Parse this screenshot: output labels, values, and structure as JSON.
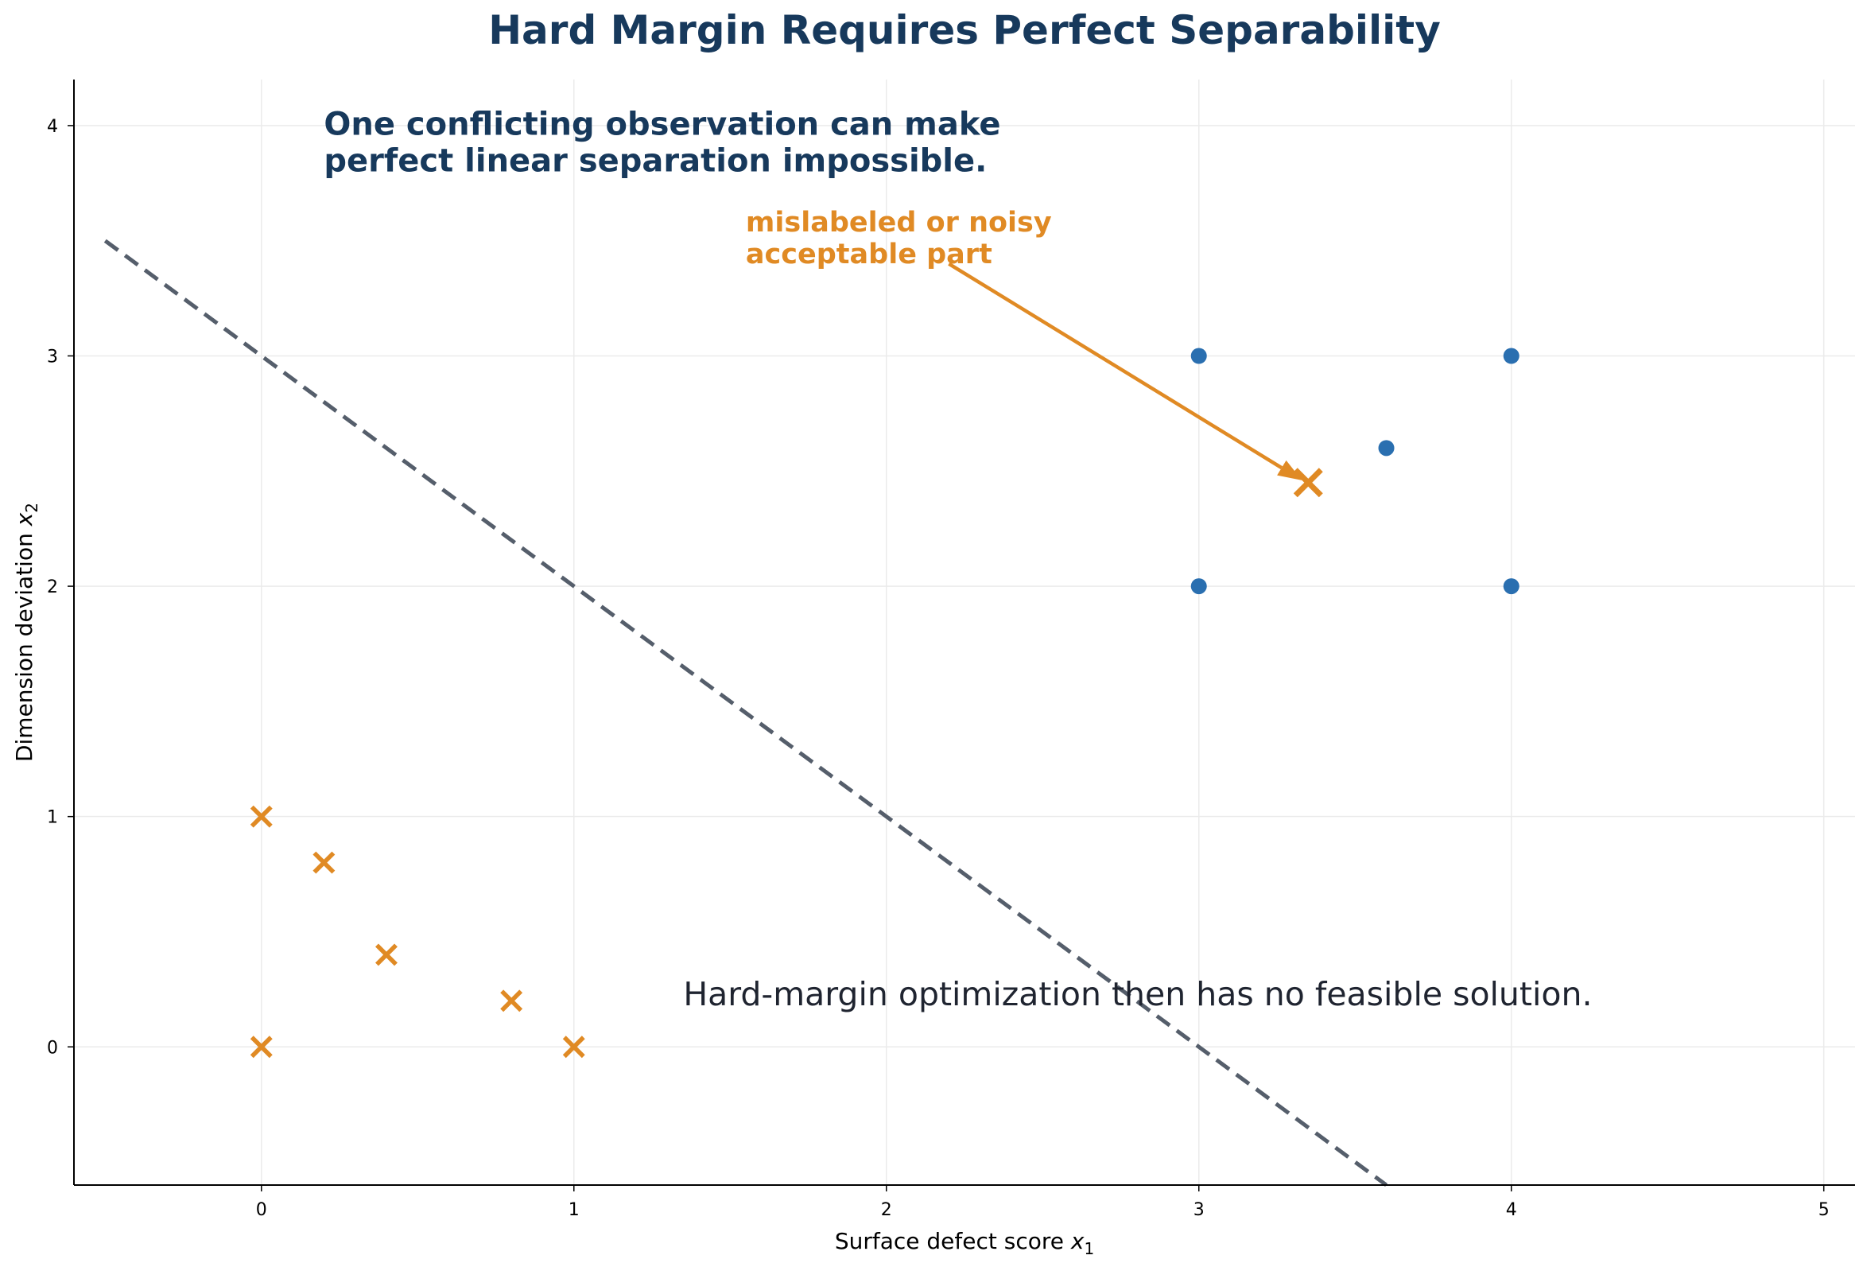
{
  "chart_data": {
    "type": "scatter",
    "title": "Hard Margin Requires Perfect Separability",
    "xlabel": "Surface defect score",
    "xlabel_symbol": "x",
    "xlabel_sub": "1",
    "ylabel": "Dimension deviation",
    "ylabel_symbol": "x",
    "ylabel_sub": "2",
    "xlim": [
      -0.6,
      5.1
    ],
    "ylim": [
      -0.6,
      4.2
    ],
    "xticks": [
      0,
      1,
      2,
      3,
      4,
      5
    ],
    "yticks": [
      0,
      1,
      2,
      3,
      4
    ],
    "grid": true,
    "series": [
      {
        "marker": "x",
        "color": "#e08a24",
        "points": [
          [
            0,
            1
          ],
          [
            0.2,
            0.8
          ],
          [
            0.4,
            0.4
          ],
          [
            0.8,
            0.2
          ],
          [
            0,
            0
          ],
          [
            1,
            0
          ]
        ]
      },
      {
        "marker": "circle",
        "color": "#2a6fb0",
        "points": [
          [
            3,
            3
          ],
          [
            4,
            3
          ],
          [
            3.6,
            2.6
          ],
          [
            3,
            2
          ],
          [
            4,
            2
          ]
        ]
      },
      {
        "marker": "x-large",
        "color": "#e08a24",
        "points": [
          [
            3.35,
            2.45
          ]
        ]
      }
    ],
    "boundary_line": {
      "style": "dashed",
      "color": "#555e6b",
      "from": [
        -0.5,
        3.5
      ],
      "to": [
        3.6,
        -0.6
      ]
    },
    "annotations": {
      "headline_lines": [
        "One conflicting observation can make",
        "perfect linear separation impossible."
      ],
      "headline_at": [
        0.2,
        3.96
      ],
      "arrow_label_lines": [
        "mislabeled or noisy",
        "acceptable part"
      ],
      "arrow_label_at": [
        1.55,
        3.54
      ],
      "arrow_from": [
        2.2,
        3.4
      ],
      "arrow_to": [
        3.33,
        2.46
      ],
      "arrow_color": "#e08a24",
      "footnote": "Hard-margin optimization then has no feasible solution.",
      "footnote_at": [
        1.35,
        0.18
      ]
    }
  }
}
